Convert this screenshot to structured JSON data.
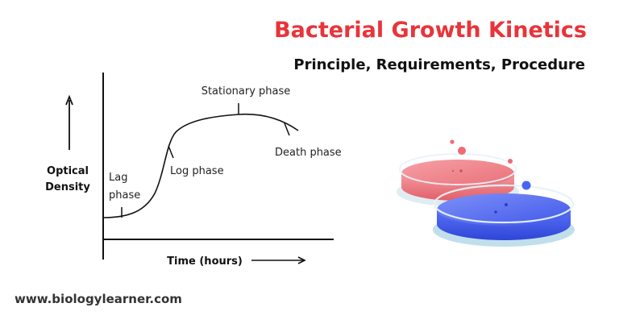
{
  "header": {
    "title": "Bacterial Growth Kinetics",
    "subtitle": "Principle, Requirements, Procedure"
  },
  "diagram": {
    "y_axis_label_line1": "Optical",
    "y_axis_label_line2": "Density",
    "x_axis_label": "Time (hours)",
    "phases": {
      "lag_line1": "Lag",
      "lag_line2": "phase",
      "log": "Log phase",
      "stationary": "Stationary phase",
      "death": "Death phase"
    }
  },
  "footer": {
    "website": "www.biologylearner.com"
  },
  "colors": {
    "title": "#e8343a",
    "red_dish": "#f07f86",
    "blue_dish": "#4a64f2"
  }
}
